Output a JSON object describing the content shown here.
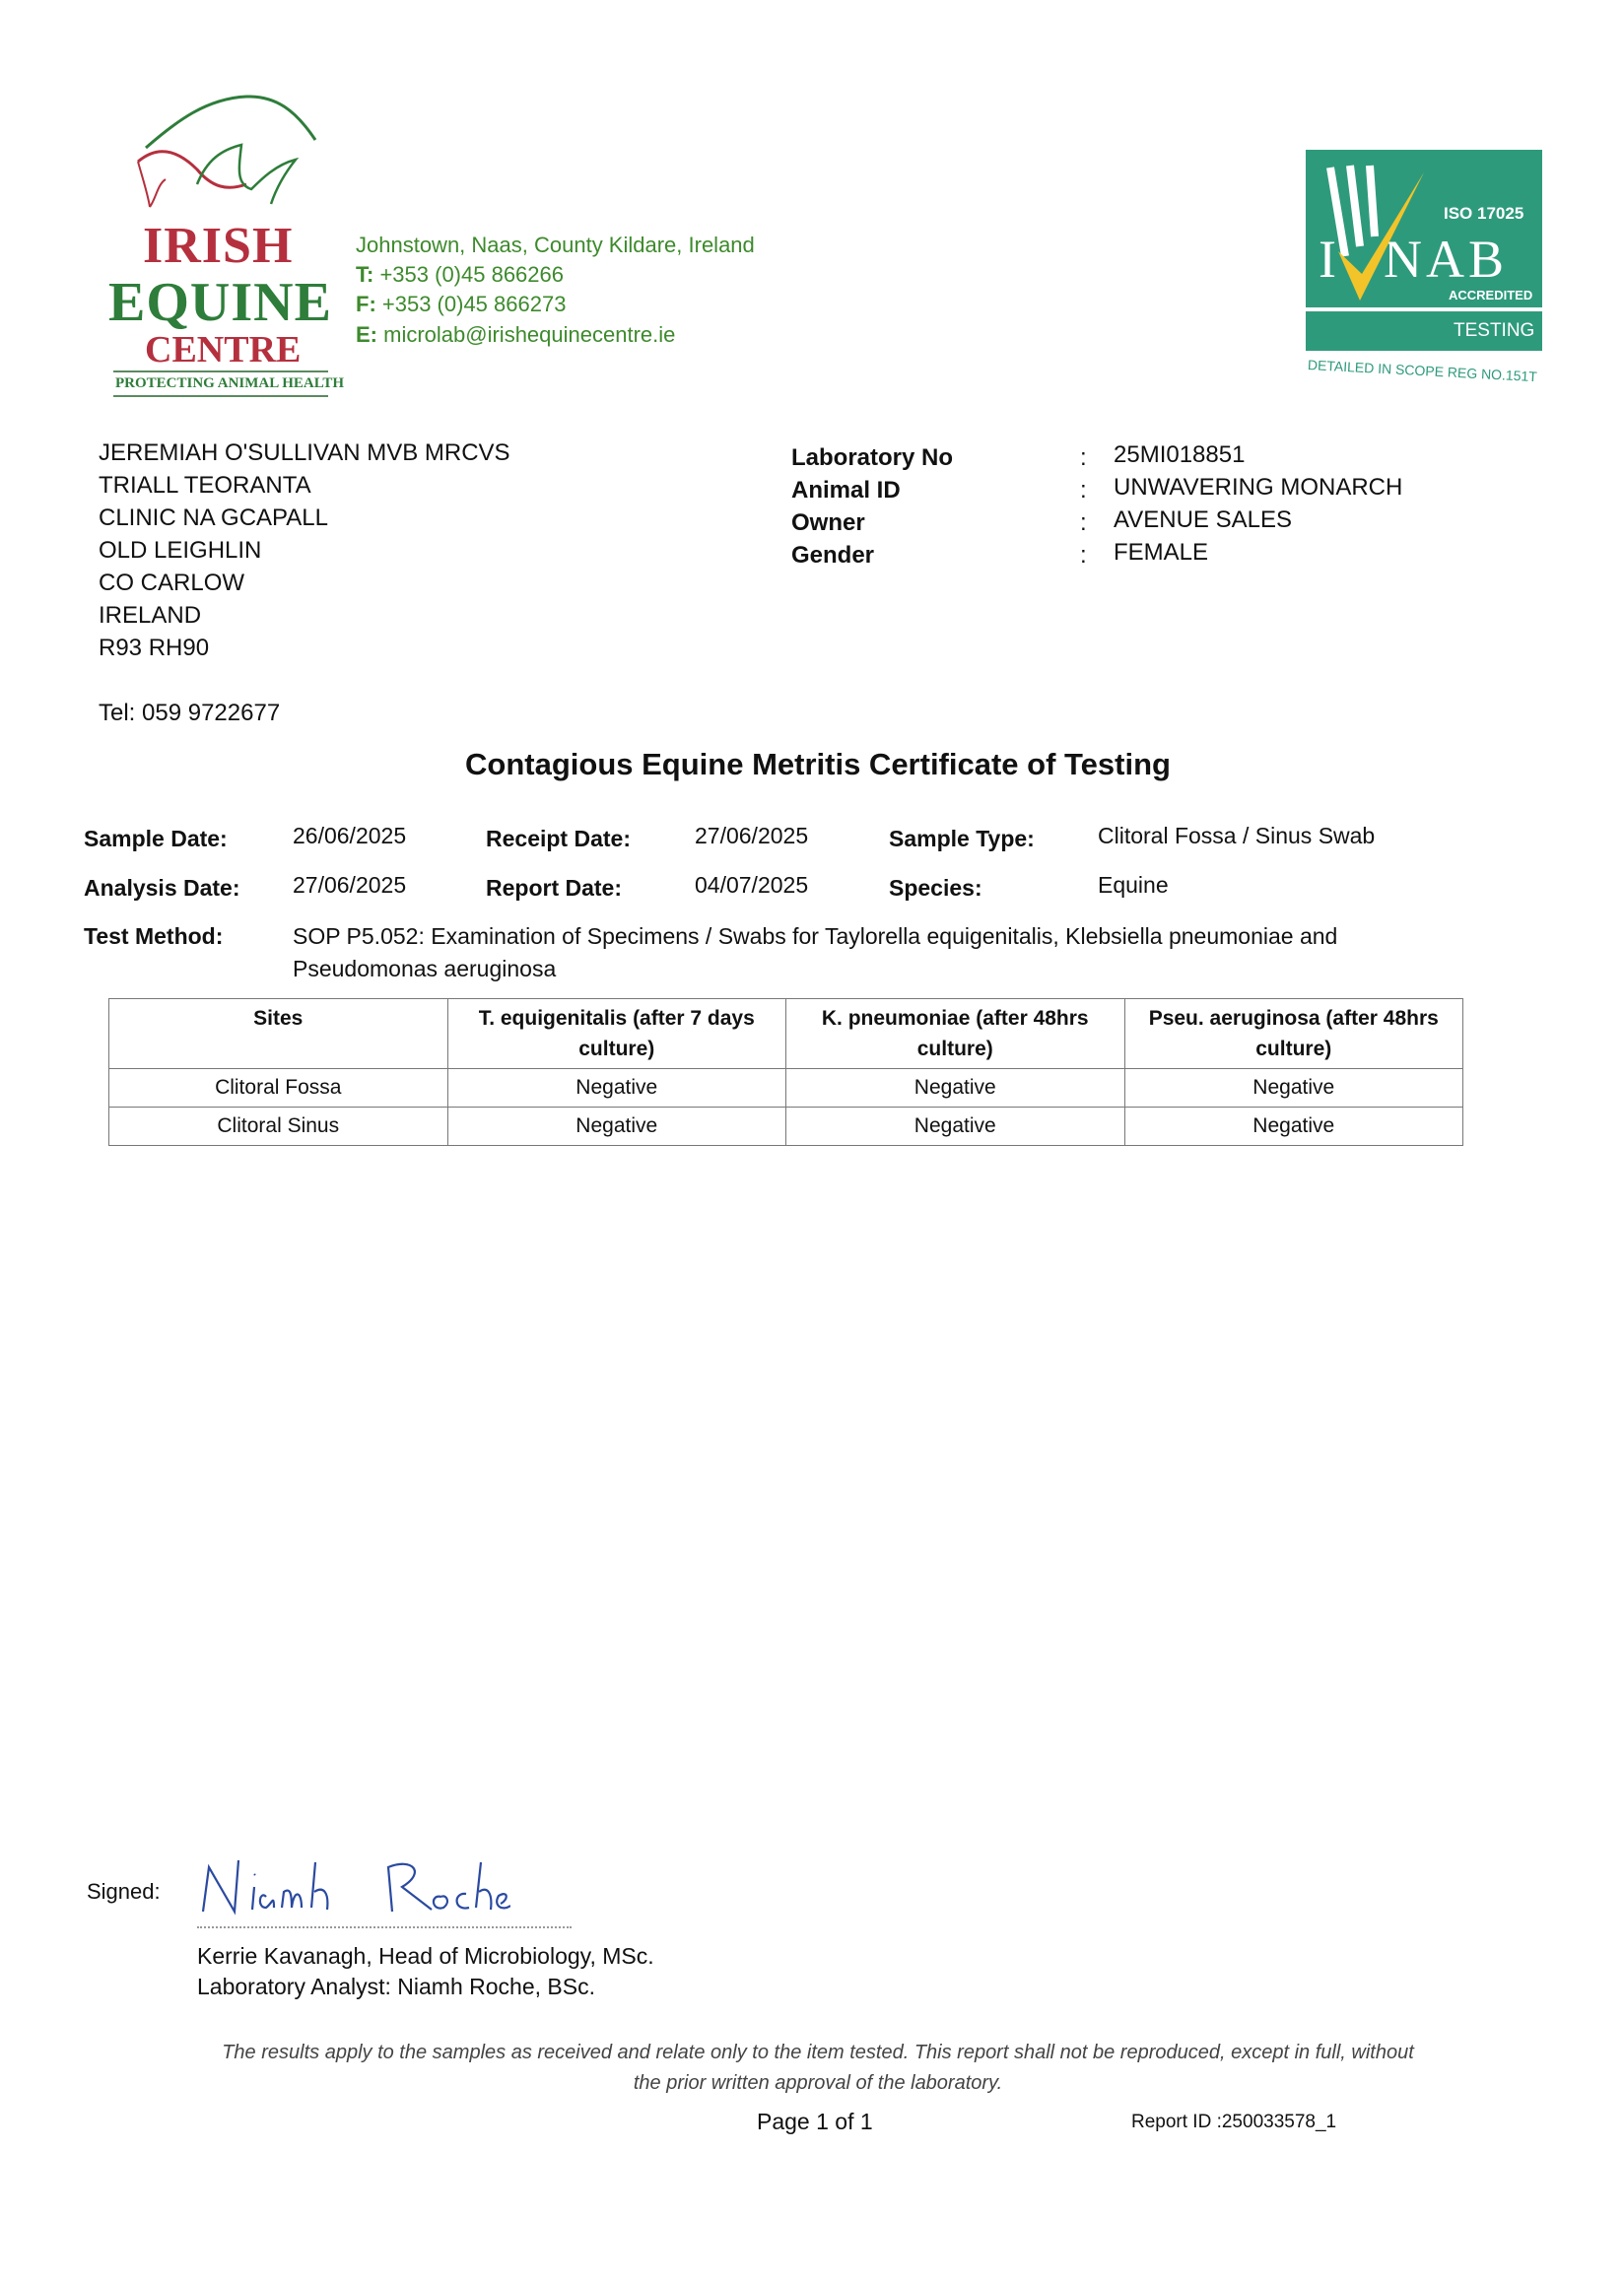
{
  "header": {
    "logo": {
      "line1": "IRISH",
      "line2": "EQUINE",
      "line3": "CENTRE",
      "tagline": "PROTECTING ANIMAL HEALTH"
    },
    "contact": {
      "address": "Johnstown, Naas, County Kildare, Ireland",
      "tel_label": "T:",
      "tel": "+353 (0)45 866266",
      "fax_label": "F:",
      "fax": "+353 (0)45 866273",
      "email_label": "E:",
      "email": "microlab@irishequinecentre.ie"
    },
    "accreditation": {
      "iso": "ISO 17025",
      "name": "INAB",
      "accredited": "ACCREDITED",
      "type": "TESTING",
      "scope": "DETAILED IN SCOPE REG NO.151T"
    }
  },
  "recipient": {
    "lines": [
      "JEREMIAH O'SULLIVAN  MVB  MRCVS",
      "TRIALL TEORANTA",
      "CLINIC NA GCAPALL",
      "OLD LEIGHLIN",
      "CO CARLOW",
      "IRELAND",
      "R93 RH90"
    ],
    "tel": "Tel: 059 9722677"
  },
  "lab_info": [
    {
      "label": "Laboratory No",
      "value": "25MI018851"
    },
    {
      "label": "Animal ID",
      "value": "UNWAVERING MONARCH"
    },
    {
      "label": "Owner",
      "value": "AVENUE SALES"
    },
    {
      "label": "Gender",
      "value": "FEMALE"
    }
  ],
  "title": "Contagious Equine Metritis Certificate of Testing",
  "fields": {
    "sample_date": {
      "label": "Sample Date:",
      "value": "26/06/2025"
    },
    "receipt_date": {
      "label": "Receipt Date:",
      "value": "27/06/2025"
    },
    "sample_type": {
      "label": "Sample Type:",
      "value": "Clitoral Fossa / Sinus Swab"
    },
    "analysis_date": {
      "label": "Analysis Date:",
      "value": "27/06/2025"
    },
    "report_date": {
      "label": "Report Date:",
      "value": "04/07/2025"
    },
    "species": {
      "label": "Species:",
      "value": "Equine"
    },
    "test_method": {
      "label": "Test Method:",
      "line1": "SOP P5.052: Examination of Specimens / Swabs for Taylorella equigenitalis, Klebsiella pneumoniae and",
      "line2": "Pseudomonas aeruginosa"
    }
  },
  "table": {
    "headers": [
      "Sites",
      "T. equigenitalis (after 7 days culture)",
      "K. pneumoniae (after 48hrs culture)",
      "Pseu. aeruginosa (after 48hrs culture)"
    ],
    "rows": [
      [
        "Clitoral Fossa",
        "Negative",
        "Negative",
        "Negative"
      ],
      [
        "Clitoral Sinus",
        "Negative",
        "Negative",
        "Negative"
      ]
    ]
  },
  "signature": {
    "label": "Signed:",
    "signature_text": "Niamh Roche",
    "line1": "Kerrie Kavanagh, Head of Microbiology, MSc.",
    "line2": "Laboratory Analyst: Niamh Roche, BSc."
  },
  "footer": {
    "disclaimer1": "The results apply to the samples as received and relate only to the item tested. This report shall not be reproduced, except in full, without",
    "disclaimer2": "the prior written approval of the laboratory.",
    "page": "Page 1 of 1",
    "report_id": "Report ID :250033578_1"
  },
  "colors": {
    "green": "#2e7d3a",
    "red": "#b5303e",
    "inab_teal": "#2e9a7c",
    "check_yellow": "#f2c42a"
  }
}
